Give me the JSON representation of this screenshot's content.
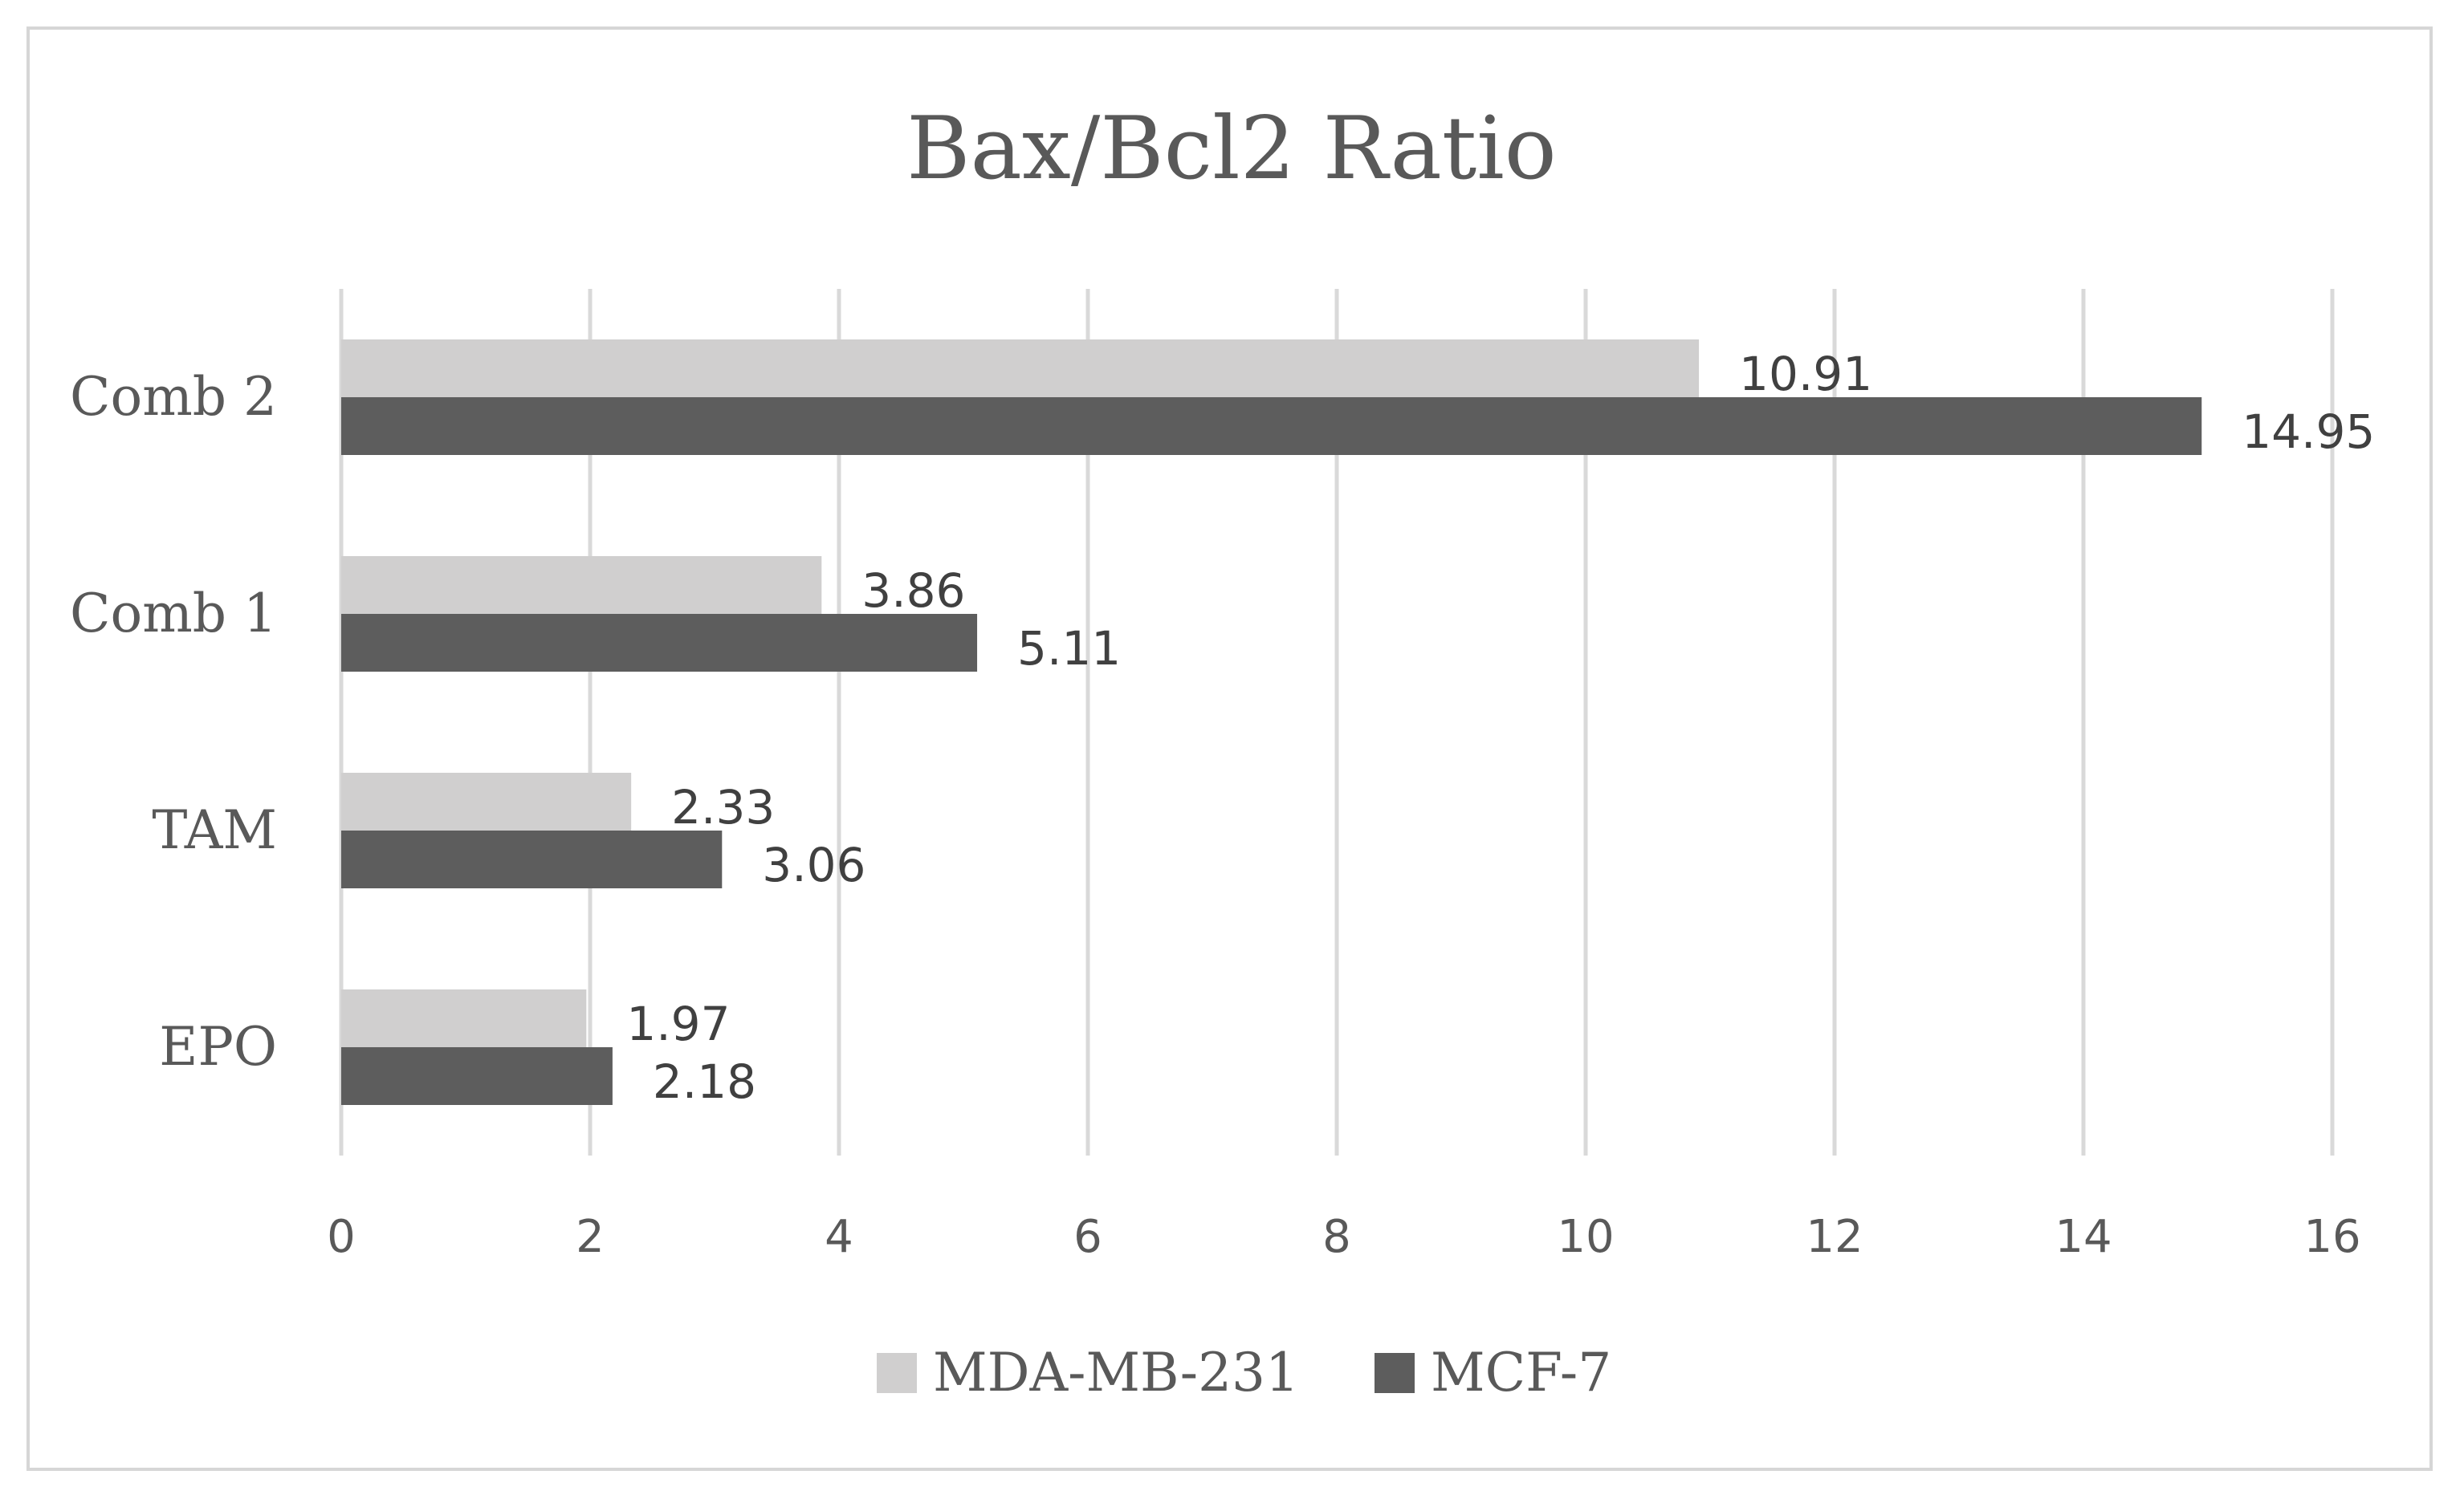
{
  "chart_data": {
    "type": "bar",
    "orientation": "horizontal",
    "title": "Bax/Bcl2 Ratio",
    "categories": [
      "EPO",
      "TAM",
      "Comb 1",
      "Comb 2"
    ],
    "series": [
      {
        "name": "MDA-MB-231",
        "color": "#d0cfcf",
        "values": [
          1.97,
          2.33,
          3.86,
          10.91
        ],
        "labels": [
          "1.97",
          "2.33",
          "3.86",
          "10.91"
        ]
      },
      {
        "name": "MCF-7",
        "color": "#5d5d5d",
        "values": [
          2.18,
          3.06,
          5.11,
          14.95
        ],
        "labels": [
          "2.18",
          "3.06",
          "5.11",
          "14.95"
        ]
      }
    ],
    "xlim": [
      0,
      16
    ],
    "xticks": [
      "0",
      "2",
      "4",
      "6",
      "8",
      "10",
      "12",
      "14",
      "16"
    ],
    "grid": "vertical",
    "legend_position": "bottom",
    "gridline_color": "#d9d9d9"
  }
}
